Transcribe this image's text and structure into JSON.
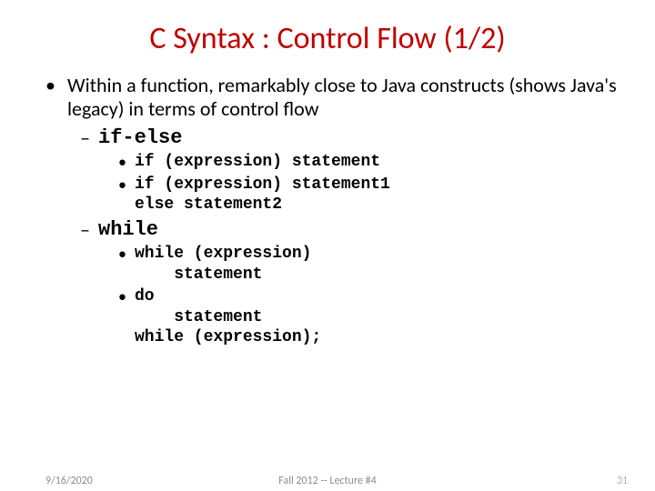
{
  "colors": {
    "title": "#c00000",
    "body": "#000000",
    "footer": "#8c8c8c",
    "page_number": "#b9b0a5"
  },
  "title": "C Syntax : Control Flow (1/2)",
  "main_bullet": "Within a function, remarkably close to Java constructs (shows Java's legacy) in terms of control flow",
  "section1": {
    "label": "if-else",
    "line1": "if (expression) statement",
    "line2": "if (expression) statement1",
    "line2_cont": "else statement2"
  },
  "section2": {
    "label": "while",
    "line1": "while (expression)",
    "line1_cont": "    statement",
    "line2": "do",
    "line2_cont1": "    statement",
    "line2_cont2": "while (expression);"
  },
  "footer": {
    "date": "9/16/2020",
    "center": "Fall 2012 -- Lecture #4",
    "page": "31"
  }
}
